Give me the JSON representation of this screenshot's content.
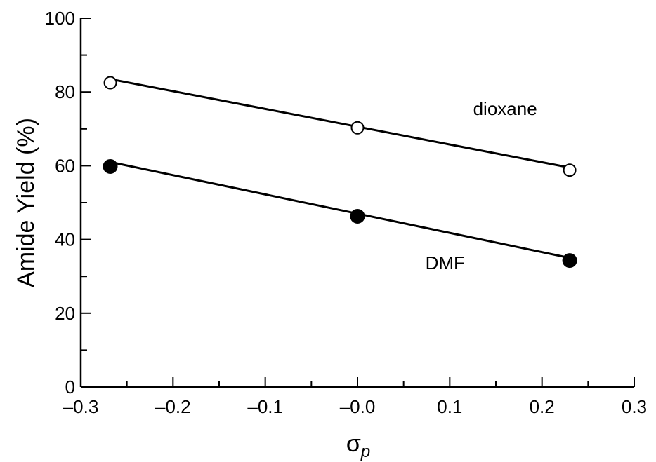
{
  "chart_data": {
    "type": "scatter",
    "xlabel": "σ",
    "xlabel_sub": "p",
    "ylabel": "Amide Yield (%)",
    "xlim": [
      -0.3,
      0.3
    ],
    "ylim": [
      0,
      100
    ],
    "x_ticks": [
      {
        "value": -0.3,
        "label": "–0.3"
      },
      {
        "value": -0.2,
        "label": "–0.2"
      },
      {
        "value": -0.1,
        "label": "–0.1"
      },
      {
        "value": 0.0,
        "label": "–0.0"
      },
      {
        "value": 0.1,
        "label": "0.1"
      },
      {
        "value": 0.2,
        "label": "0.2"
      },
      {
        "value": 0.3,
        "label": "0.3"
      }
    ],
    "x_minor_step": 0.05,
    "y_ticks": [
      {
        "value": 0,
        "label": "0"
      },
      {
        "value": 20,
        "label": "20"
      },
      {
        "value": 40,
        "label": "40"
      },
      {
        "value": 60,
        "label": "60"
      },
      {
        "value": 80,
        "label": "80"
      },
      {
        "value": 100,
        "label": "100"
      }
    ],
    "y_minor_step": 10,
    "grid": false,
    "series": [
      {
        "name": "dioxane",
        "marker": "open-circle",
        "x": [
          -0.268,
          0.0,
          0.23
        ],
        "y": [
          82.5,
          70.3,
          58.8
        ],
        "fit": {
          "x": [
            -0.268,
            0.23
          ],
          "y": [
            83.5,
            59.5
          ]
        }
      },
      {
        "name": "DMF",
        "marker": "filled-circle",
        "x": [
          -0.268,
          0.0,
          0.23
        ],
        "y": [
          59.8,
          46.3,
          34.3
        ],
        "fit": {
          "x": [
            -0.268,
            0.23
          ],
          "y": [
            61.0,
            35.0
          ]
        }
      }
    ]
  }
}
